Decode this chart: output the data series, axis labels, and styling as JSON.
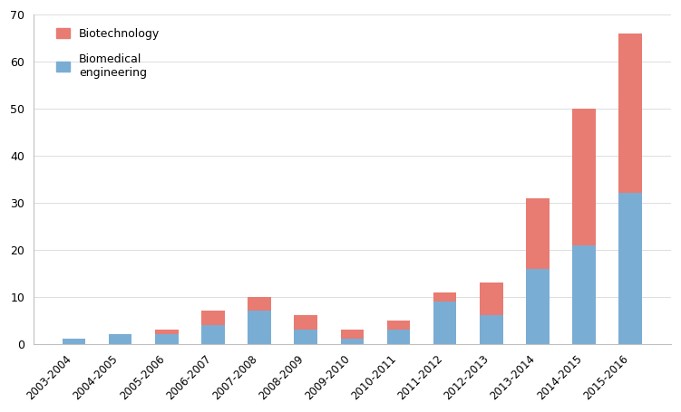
{
  "categories": [
    "2003-2004",
    "2004-2005",
    "2005-2006",
    "2006-2007",
    "2007-2008",
    "2008-2009",
    "2009-2010",
    "2010-2011",
    "2011-2012",
    "2012-2013",
    "2013-2014",
    "2014-2015",
    "2015-2016"
  ],
  "biomedical": [
    1,
    2,
    2,
    4,
    7,
    3,
    1,
    3,
    9,
    6,
    16,
    21,
    32
  ],
  "biotechnology": [
    0,
    0,
    1,
    3,
    3,
    3,
    2,
    2,
    2,
    7,
    15,
    29,
    34
  ],
  "biomedical_color": "#7aadd4",
  "biotechnology_color": "#e87b72",
  "ylim": [
    0,
    70
  ],
  "yticks": [
    0,
    10,
    20,
    30,
    40,
    50,
    60,
    70
  ],
  "background_color": "#ffffff",
  "bar_width": 0.5
}
